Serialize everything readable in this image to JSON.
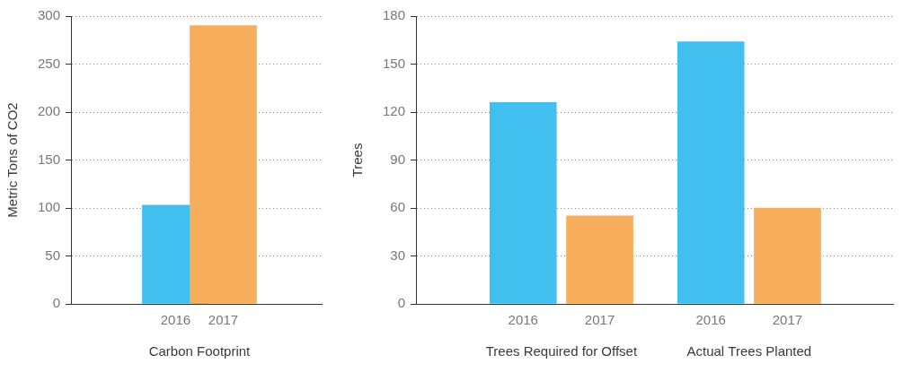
{
  "chart_data": [
    {
      "type": "bar",
      "ylabel": "Metric Tons of CO2",
      "groups": [
        {
          "label": "Carbon Footprint",
          "categories": [
            "2016",
            "2017"
          ],
          "values": [
            103,
            290
          ],
          "colors": [
            "#41c0f0",
            "#f7ae5a"
          ]
        }
      ],
      "ylim": [
        0,
        300
      ],
      "yticks": [
        0,
        50,
        100,
        150,
        200,
        250,
        300
      ],
      "grid": true
    },
    {
      "type": "bar",
      "ylabel": "Trees",
      "groups": [
        {
          "label": "Trees Required for Offset",
          "categories": [
            "2016",
            "2017"
          ],
          "values": [
            126,
            55
          ],
          "colors": [
            "#41c0f0",
            "#f7ae5a"
          ]
        },
        {
          "label": "Actual Trees Planted",
          "categories": [
            "2016",
            "2017"
          ],
          "values": [
            164,
            60
          ],
          "colors": [
            "#41c0f0",
            "#f7ae5a"
          ]
        }
      ],
      "ylim": [
        0,
        180
      ],
      "yticks": [
        0,
        30,
        60,
        90,
        120,
        150,
        180
      ],
      "grid": true
    }
  ]
}
